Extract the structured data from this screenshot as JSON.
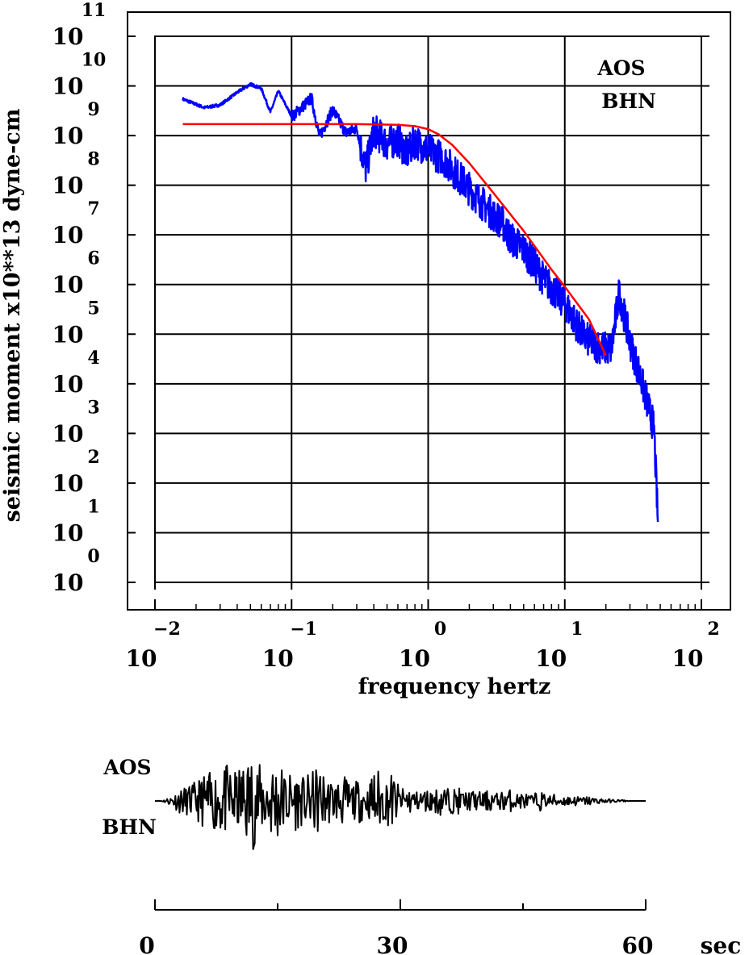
{
  "chart_data": [
    {
      "type": "line",
      "title": "",
      "xlabel": "frequency hertz",
      "ylabel": "seismic moment x10**13 dyne-cm",
      "x_scale": "log",
      "y_scale": "log",
      "xlim": [
        0.01,
        100
      ],
      "ylim": [
        1,
        100000000000
      ],
      "x_tick_exponents": [
        "-2",
        "-1",
        "0",
        "1",
        "2"
      ],
      "x_tick_base": "10",
      "y_tick_exponents": [
        "11",
        "10",
        "9",
        "8",
        "7",
        "6",
        "5",
        "4",
        "3",
        "2",
        "1",
        "0"
      ],
      "y_tick_base": "10",
      "grid": true,
      "annotation": {
        "station": "AOS",
        "channel": "BHN"
      },
      "series": [
        {
          "color": "#0000ff",
          "style": "noisy spectrum",
          "x": [
            0.016,
            0.023,
            0.03,
            0.04,
            0.05,
            0.06,
            0.07,
            0.08,
            0.1,
            0.12,
            0.14,
            0.16,
            0.2,
            0.25,
            0.3,
            0.35,
            0.4,
            0.5,
            0.6,
            0.7,
            0.8,
            1.0,
            1.3,
            1.6,
            2.0,
            2.5,
            3.0,
            3.5,
            4.0,
            5.0,
            6.0,
            7.0,
            8.0,
            10.0,
            12.0,
            14.0,
            17.0,
            20.0,
            22.0,
            25.0,
            28.0,
            30.0,
            35.0,
            40.0,
            45.0,
            48.0
          ],
          "y": [
            5500000000.0,
            3700000000.0,
            4200000000.0,
            7500000000.0,
            11000000000.0,
            9000000000.0,
            3000000000.0,
            8000000000.0,
            2500000000.0,
            4000000000.0,
            6000000000.0,
            1000000000.0,
            3500000000.0,
            1200000000.0,
            1500000000.0,
            250000000.0,
            1500000000.0,
            800000000.0,
            1000000000.0,
            500000000.0,
            900000000.0,
            600000000.0,
            400000000.0,
            200000000.0,
            100000000.0,
            50000000.0,
            30000000.0,
            20000000.0,
            10000000.0,
            6000000.0,
            3000000.0,
            1500000.0,
            1000000.0,
            500000.0,
            200000.0,
            100000.0,
            70000.0,
            60000.0,
            60000.0,
            800000.0,
            200000.0,
            80000.0,
            20000.0,
            5000.0,
            1500.0,
            20
          ]
        },
        {
          "color": "#ff0000",
          "style": "model fit",
          "x": [
            0.016,
            0.05,
            0.1,
            0.3,
            0.6,
            0.8,
            1.0,
            1.2,
            1.5,
            2.0,
            3.0,
            5.0,
            8.0,
            10.0,
            15.0,
            20.0
          ],
          "y": [
            1700000000.0,
            1700000000.0,
            1700000000.0,
            1700000000.0,
            1650000000.0,
            1550000000.0,
            1350000000.0,
            1050000000.0,
            650000000.0,
            280000000.0,
            70000000.0,
            12000000.0,
            2000000.0,
            900000.0,
            200000.0,
            37000.0
          ]
        }
      ]
    },
    {
      "type": "line",
      "title": "",
      "annotation": {
        "station": "AOS",
        "channel": "BHN"
      },
      "x_unit": "sec",
      "xlim": [
        0,
        60
      ],
      "x_tick_labels": [
        "0",
        "30",
        "60"
      ],
      "series": [
        {
          "color": "#000000",
          "style": "seismogram",
          "x": [
            0,
            1,
            2,
            3,
            4,
            5,
            6,
            7,
            8,
            9,
            10,
            11,
            12,
            13,
            14,
            15,
            16,
            17,
            18,
            19,
            20,
            21,
            22,
            23,
            24,
            25,
            26,
            27,
            28,
            29,
            30,
            31,
            32,
            33,
            34,
            35,
            36,
            37,
            38,
            39,
            40,
            41,
            42,
            43,
            44,
            45,
            46,
            47,
            48,
            49,
            50,
            51,
            52,
            53,
            54,
            55,
            56,
            57,
            58,
            59,
            60
          ],
          "y": [
            0,
            0.02,
            -0.1,
            0.25,
            -0.3,
            0.4,
            -0.55,
            0.6,
            -0.7,
            0.75,
            -0.6,
            0.85,
            -1.0,
            0.7,
            -0.8,
            0.9,
            -0.6,
            0.65,
            -0.5,
            0.55,
            -0.75,
            0.5,
            -0.4,
            0.55,
            -0.35,
            0.45,
            -0.3,
            0.75,
            -0.45,
            0.6,
            -0.25,
            0.3,
            -0.2,
            0.25,
            -0.2,
            0.35,
            -0.25,
            0.28,
            -0.2,
            0.22,
            -0.18,
            0.24,
            -0.15,
            0.3,
            -0.15,
            0.18,
            -0.12,
            0.22,
            -0.12,
            0.15,
            -0.1,
            0.12,
            -0.08,
            0.1,
            -0.06,
            0.05,
            -0.03,
            0.03,
            0,
            0,
            0
          ]
        }
      ]
    }
  ]
}
